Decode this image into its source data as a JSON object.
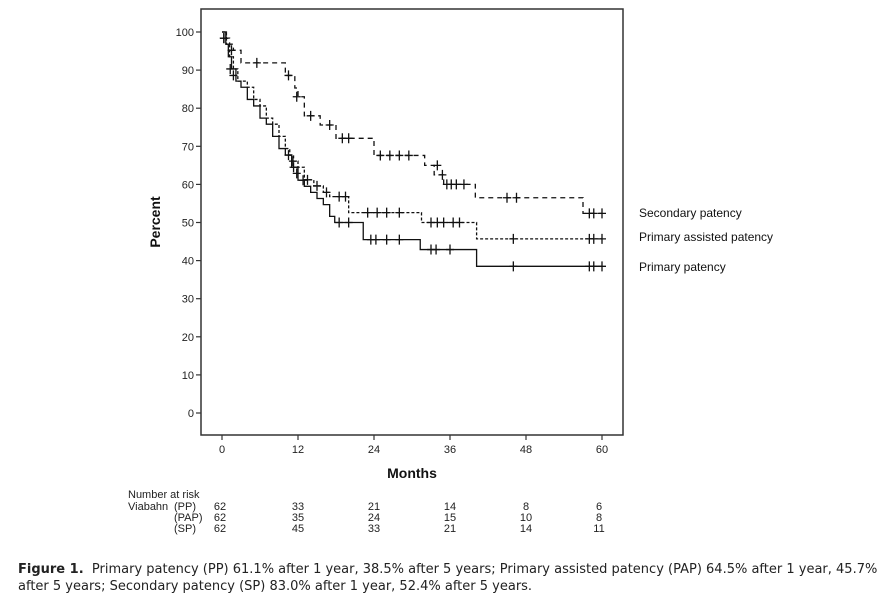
{
  "chart_data": {
    "type": "line",
    "subtype": "kaplan-meier step",
    "title": "",
    "xlabel": "Months",
    "ylabel": "Percent",
    "xlim": [
      0,
      60
    ],
    "ylim": [
      0,
      100
    ],
    "xticks": [
      0,
      12,
      24,
      36,
      48,
      60
    ],
    "yticks": [
      0,
      10,
      20,
      30,
      40,
      50,
      60,
      70,
      80,
      90,
      100
    ],
    "grid": false,
    "legend_placement": "right",
    "series": [
      {
        "name": "Secondary patency",
        "style": "dashed",
        "steps": [
          [
            0,
            100
          ],
          [
            0.7,
            98.4
          ],
          [
            1.2,
            96.8
          ],
          [
            1.8,
            95.2
          ],
          [
            3,
            91.9
          ],
          [
            9,
            91.9
          ],
          [
            10,
            88.6
          ],
          [
            11.5,
            85.3
          ],
          [
            12,
            83.0
          ],
          [
            13,
            78
          ],
          [
            15.5,
            75.6
          ],
          [
            18,
            72.1
          ],
          [
            24,
            67.6
          ],
          [
            32,
            65
          ],
          [
            33.5,
            62.5
          ],
          [
            35,
            60
          ],
          [
            40,
            56.5
          ],
          [
            53,
            56.5
          ],
          [
            57,
            52.4
          ],
          [
            60,
            52.4
          ]
        ],
        "censored": [
          [
            0.3,
            98.4
          ],
          [
            1.5,
            95.2
          ],
          [
            5.5,
            91.9
          ],
          [
            10.5,
            88.6
          ],
          [
            11.8,
            83
          ],
          [
            14,
            78
          ],
          [
            17,
            75.6
          ],
          [
            19,
            72.1
          ],
          [
            20,
            72.1
          ],
          [
            25,
            67.6
          ],
          [
            26.5,
            67.6
          ],
          [
            28,
            67.6
          ],
          [
            29.5,
            67.6
          ],
          [
            34,
            65
          ],
          [
            34.8,
            62.5
          ],
          [
            35.5,
            60
          ],
          [
            36.2,
            60
          ],
          [
            37,
            60
          ],
          [
            38.2,
            60
          ],
          [
            45,
            56.5
          ],
          [
            46.5,
            56.5
          ],
          [
            58,
            52.4
          ],
          [
            58.7,
            52.4
          ],
          [
            60,
            52.4
          ]
        ]
      },
      {
        "name": "Primary assisted patency",
        "style": "dotted",
        "steps": [
          [
            0,
            100
          ],
          [
            0.7,
            96.8
          ],
          [
            1.2,
            93.5
          ],
          [
            1.8,
            90.3
          ],
          [
            2.5,
            87.1
          ],
          [
            4,
            85.5
          ],
          [
            5,
            82.3
          ],
          [
            6,
            80.6
          ],
          [
            7,
            77.4
          ],
          [
            8,
            75.8
          ],
          [
            9,
            72.6
          ],
          [
            10,
            69.4
          ],
          [
            10.7,
            67.7
          ],
          [
            11.3,
            66.1
          ],
          [
            12,
            64.5
          ],
          [
            13,
            61.2
          ],
          [
            14.5,
            59.6
          ],
          [
            16,
            57.9
          ],
          [
            17,
            56.8
          ],
          [
            20,
            52.6
          ],
          [
            31,
            52.6
          ],
          [
            31.5,
            50
          ],
          [
            40,
            50
          ],
          [
            40.2,
            45.7
          ],
          [
            60,
            45.7
          ]
        ],
        "censored": [
          [
            0.3,
            98.4
          ],
          [
            11.2,
            66.1
          ],
          [
            13.5,
            61.2
          ],
          [
            15,
            59.6
          ],
          [
            16.5,
            57.9
          ],
          [
            18.5,
            56.8
          ],
          [
            19.5,
            56.8
          ],
          [
            23,
            52.6
          ],
          [
            24.5,
            52.6
          ],
          [
            26,
            52.6
          ],
          [
            28,
            52.6
          ],
          [
            33,
            50
          ],
          [
            34,
            50
          ],
          [
            35,
            50
          ],
          [
            36.5,
            50
          ],
          [
            37.5,
            50
          ],
          [
            46,
            45.7
          ],
          [
            58,
            45.7
          ],
          [
            58.7,
            45.7
          ],
          [
            60,
            45.7
          ]
        ]
      },
      {
        "name": "Primary patency",
        "style": "solid",
        "steps": [
          [
            0,
            100
          ],
          [
            0.6,
            96.8
          ],
          [
            1,
            93.5
          ],
          [
            1.5,
            90.3
          ],
          [
            2.2,
            87.1
          ],
          [
            3,
            85.5
          ],
          [
            4,
            82.3
          ],
          [
            5,
            80.6
          ],
          [
            6,
            77.4
          ],
          [
            7,
            75.8
          ],
          [
            8,
            72.6
          ],
          [
            9,
            69.4
          ],
          [
            10,
            67.7
          ],
          [
            11,
            64.5
          ],
          [
            12,
            61.1
          ],
          [
            13,
            59.5
          ],
          [
            14,
            57.9
          ],
          [
            15,
            56.3
          ],
          [
            16,
            54.7
          ],
          [
            17,
            51.6
          ],
          [
            17.8,
            50
          ],
          [
            22,
            50
          ],
          [
            22.3,
            45.5
          ],
          [
            31,
            45.5
          ],
          [
            31.3,
            42.9
          ],
          [
            40,
            42.9
          ],
          [
            40.2,
            38.5
          ],
          [
            60,
            38.5
          ]
        ],
        "censored": [
          [
            0.3,
            98.4
          ],
          [
            1.3,
            90.3
          ],
          [
            1.8,
            88.6
          ],
          [
            10.5,
            67.7
          ],
          [
            11.3,
            64.5
          ],
          [
            11.8,
            62.9
          ],
          [
            12.8,
            61.1
          ],
          [
            18.5,
            50
          ],
          [
            20,
            50
          ],
          [
            23.5,
            45.5
          ],
          [
            24.3,
            45.5
          ],
          [
            26,
            45.5
          ],
          [
            28,
            45.5
          ],
          [
            33,
            42.9
          ],
          [
            33.8,
            42.9
          ],
          [
            36,
            42.9
          ],
          [
            46,
            38.5
          ],
          [
            58,
            38.5
          ],
          [
            58.7,
            38.5
          ],
          [
            60,
            38.5
          ]
        ]
      }
    ],
    "legend": [
      "Secondary patency",
      "Primary assisted patency",
      "Primary patency"
    ],
    "number_at_risk": {
      "header": "Number at risk",
      "group": "Viabahn",
      "months": [
        0,
        12,
        24,
        36,
        48,
        60
      ],
      "rows": [
        {
          "label": "(PP)",
          "values": [
            62,
            33,
            21,
            14,
            8,
            6
          ]
        },
        {
          "label": "(PAP)",
          "values": [
            62,
            35,
            24,
            15,
            10,
            8
          ]
        },
        {
          "label": "(SP)",
          "values": [
            62,
            45,
            33,
            21,
            14,
            11
          ]
        }
      ]
    }
  },
  "caption": {
    "label": "Figure 1.",
    "text": "Primary patency (PP) 61.1% after 1 year, 38.5% after 5 years; Primary assisted patency (PAP) 64.5% after 1 year, 45.7% after 5 years; Secondary patency (SP) 83.0% after 1 year, 52.4% after 5 years."
  }
}
